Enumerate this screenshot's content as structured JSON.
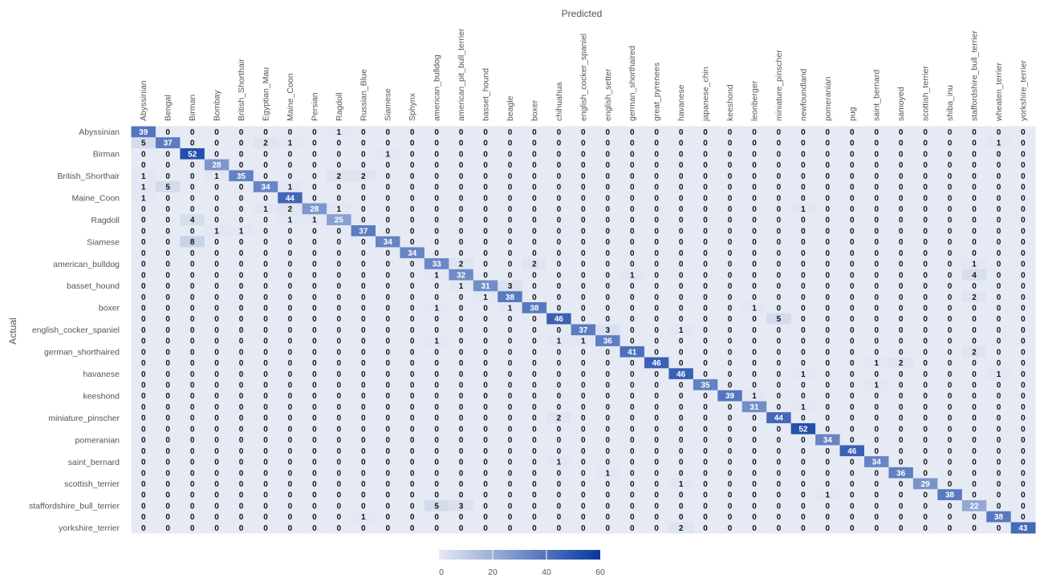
{
  "chart_data": {
    "type": "heatmap",
    "xlabel": "Predicted",
    "ylabel": "Actual",
    "x_categories": [
      "Abyssinian",
      "Bengal",
      "Birman",
      "Bombay",
      "British_Shorthair",
      "Egyptian_Mau",
      "Maine_Coon",
      "Persian",
      "Ragdoll",
      "Russian_Blue",
      "Siamese",
      "Sphynx",
      "american_bulldog",
      "american_pit_bull_terrier",
      "basset_hound",
      "beagle",
      "boxer",
      "chihuahua",
      "english_cocker_spaniel",
      "english_setter",
      "german_shorthaired",
      "great_pyrenees",
      "havanese",
      "japanese_chin",
      "keeshond",
      "leonberger",
      "miniature_pinscher",
      "newfoundland",
      "pomeranian",
      "pug",
      "saint_bernard",
      "samoyed",
      "scottish_terrier",
      "shiba_inu",
      "staffordshire_bull_terrier",
      "wheaten_terrier",
      "yorkshire_terrier"
    ],
    "y_categories": [
      "Abyssinian",
      "Bengal",
      "Birman",
      "Bombay",
      "British_Shorthair",
      "Egyptian_Mau",
      "Maine_Coon",
      "Persian",
      "Ragdoll",
      "Russian_Blue",
      "Siamese",
      "Sphynx",
      "american_bulldog",
      "american_pit_bull_terrier",
      "basset_hound",
      "beagle",
      "boxer",
      "chihuahua",
      "english_cocker_spaniel",
      "english_setter",
      "german_shorthaired",
      "great_pyrenees",
      "havanese",
      "japanese_chin",
      "keeshond",
      "leonberger",
      "miniature_pinscher",
      "newfoundland",
      "pomeranian",
      "pug",
      "saint_bernard",
      "samoyed",
      "scottish_terrier",
      "shiba_inu",
      "staffordshire_bull_terrier",
      "wheaten_terrier",
      "yorkshire_terrier"
    ],
    "y_tick_labels_shown": [
      "Abyssinian",
      "",
      "Birman",
      "",
      "British_Shorthair",
      "",
      "Maine_Coon",
      "",
      "Ragdoll",
      "",
      "Siamese",
      "",
      "american_bulldog",
      "",
      "basset_hound",
      "",
      "boxer",
      "",
      "english_cocker_spaniel",
      "",
      "german_shorthaired",
      "",
      "havanese",
      "",
      "keeshond",
      "",
      "miniature_pinscher",
      "",
      "pomeranian",
      "",
      "saint_bernard",
      "",
      "scottish_terrier",
      "",
      "staffordshire_bull_terrier",
      "",
      "yorkshire_terrier"
    ],
    "matrix": [
      [
        39,
        0,
        0,
        0,
        0,
        0,
        0,
        0,
        1,
        0,
        0,
        0,
        0,
        0,
        0,
        0,
        0,
        0,
        0,
        0,
        0,
        0,
        0,
        0,
        0,
        0,
        0,
        0,
        0,
        0,
        0,
        0,
        0,
        0,
        0,
        0,
        0
      ],
      [
        5,
        37,
        0,
        0,
        0,
        2,
        1,
        0,
        0,
        0,
        0,
        0,
        0,
        0,
        0,
        0,
        0,
        0,
        0,
        0,
        0,
        0,
        0,
        0,
        0,
        0,
        0,
        0,
        0,
        0,
        0,
        0,
        0,
        0,
        0,
        1,
        0
      ],
      [
        0,
        0,
        52,
        0,
        0,
        0,
        0,
        0,
        0,
        0,
        1,
        0,
        0,
        0,
        0,
        0,
        0,
        0,
        0,
        0,
        0,
        0,
        0,
        0,
        0,
        0,
        0,
        0,
        0,
        0,
        0,
        0,
        0,
        0,
        0,
        0,
        0
      ],
      [
        0,
        0,
        0,
        28,
        0,
        0,
        0,
        0,
        0,
        0,
        0,
        0,
        0,
        0,
        0,
        0,
        0,
        0,
        0,
        0,
        0,
        0,
        0,
        0,
        0,
        0,
        0,
        0,
        0,
        0,
        0,
        0,
        0,
        0,
        0,
        0,
        0
      ],
      [
        1,
        0,
        0,
        1,
        35,
        0,
        0,
        0,
        2,
        2,
        0,
        0,
        0,
        0,
        0,
        0,
        0,
        0,
        0,
        0,
        0,
        0,
        0,
        0,
        0,
        0,
        0,
        0,
        0,
        0,
        0,
        0,
        0,
        0,
        0,
        0,
        0
      ],
      [
        1,
        5,
        0,
        0,
        0,
        34,
        1,
        0,
        0,
        0,
        0,
        0,
        0,
        0,
        0,
        0,
        0,
        0,
        0,
        0,
        0,
        0,
        0,
        0,
        0,
        0,
        0,
        0,
        0,
        0,
        0,
        0,
        0,
        0,
        0,
        0,
        0
      ],
      [
        1,
        0,
        0,
        0,
        0,
        0,
        44,
        0,
        0,
        0,
        0,
        0,
        0,
        0,
        0,
        0,
        0,
        0,
        0,
        0,
        0,
        0,
        0,
        0,
        0,
        0,
        0,
        0,
        0,
        0,
        0,
        0,
        0,
        0,
        0,
        0,
        0
      ],
      [
        0,
        0,
        0,
        0,
        0,
        1,
        2,
        28,
        1,
        0,
        0,
        0,
        0,
        0,
        0,
        0,
        0,
        0,
        0,
        0,
        0,
        0,
        0,
        0,
        0,
        0,
        0,
        1,
        0,
        0,
        0,
        0,
        0,
        0,
        0,
        0,
        0
      ],
      [
        0,
        0,
        4,
        0,
        0,
        0,
        1,
        1,
        25,
        0,
        0,
        0,
        0,
        0,
        0,
        0,
        0,
        0,
        0,
        0,
        0,
        0,
        0,
        0,
        0,
        0,
        0,
        0,
        0,
        0,
        0,
        0,
        0,
        0,
        0,
        0,
        0
      ],
      [
        0,
        0,
        0,
        1,
        1,
        0,
        0,
        0,
        0,
        37,
        0,
        0,
        0,
        0,
        0,
        0,
        0,
        0,
        0,
        0,
        0,
        0,
        0,
        0,
        0,
        0,
        0,
        0,
        0,
        0,
        0,
        0,
        0,
        0,
        0,
        0,
        0
      ],
      [
        0,
        0,
        8,
        0,
        0,
        0,
        0,
        0,
        0,
        0,
        34,
        0,
        0,
        0,
        0,
        0,
        0,
        0,
        0,
        0,
        0,
        0,
        0,
        0,
        0,
        0,
        0,
        0,
        0,
        0,
        0,
        0,
        0,
        0,
        0,
        0,
        0
      ],
      [
        0,
        0,
        0,
        0,
        0,
        0,
        0,
        0,
        0,
        0,
        0,
        34,
        0,
        0,
        0,
        0,
        0,
        0,
        0,
        0,
        0,
        0,
        0,
        0,
        0,
        0,
        0,
        0,
        0,
        0,
        0,
        0,
        0,
        0,
        0,
        0,
        0
      ],
      [
        0,
        0,
        0,
        0,
        0,
        0,
        0,
        0,
        0,
        0,
        0,
        0,
        33,
        2,
        0,
        0,
        2,
        0,
        0,
        0,
        0,
        0,
        0,
        0,
        0,
        0,
        0,
        0,
        0,
        0,
        0,
        0,
        0,
        0,
        1,
        0,
        0
      ],
      [
        0,
        0,
        0,
        0,
        0,
        0,
        0,
        0,
        0,
        0,
        0,
        0,
        1,
        32,
        0,
        0,
        0,
        0,
        0,
        0,
        1,
        0,
        0,
        0,
        0,
        0,
        0,
        0,
        0,
        0,
        0,
        0,
        0,
        0,
        4,
        0,
        0
      ],
      [
        0,
        0,
        0,
        0,
        0,
        0,
        0,
        0,
        0,
        0,
        0,
        0,
        0,
        1,
        31,
        3,
        0,
        0,
        0,
        0,
        0,
        0,
        0,
        0,
        0,
        0,
        0,
        0,
        0,
        0,
        0,
        0,
        0,
        0,
        0,
        0,
        0
      ],
      [
        0,
        0,
        0,
        0,
        0,
        0,
        0,
        0,
        0,
        0,
        0,
        0,
        0,
        0,
        1,
        38,
        0,
        0,
        0,
        0,
        0,
        0,
        0,
        0,
        0,
        0,
        0,
        0,
        0,
        0,
        0,
        0,
        0,
        0,
        2,
        0,
        0
      ],
      [
        0,
        0,
        0,
        0,
        0,
        0,
        0,
        0,
        0,
        0,
        0,
        0,
        1,
        0,
        0,
        1,
        38,
        0,
        0,
        0,
        0,
        0,
        0,
        0,
        0,
        1,
        0,
        0,
        0,
        0,
        0,
        0,
        0,
        0,
        0,
        0,
        0
      ],
      [
        0,
        0,
        0,
        0,
        0,
        0,
        0,
        0,
        0,
        0,
        0,
        0,
        0,
        0,
        0,
        0,
        0,
        46,
        0,
        0,
        0,
        0,
        0,
        0,
        0,
        0,
        5,
        0,
        0,
        0,
        0,
        0,
        0,
        0,
        0,
        0,
        0
      ],
      [
        0,
        0,
        0,
        0,
        0,
        0,
        0,
        0,
        0,
        0,
        0,
        0,
        0,
        0,
        0,
        0,
        0,
        0,
        37,
        3,
        0,
        0,
        1,
        0,
        0,
        0,
        0,
        0,
        0,
        0,
        0,
        0,
        0,
        0,
        0,
        0,
        0
      ],
      [
        0,
        0,
        0,
        0,
        0,
        0,
        0,
        0,
        0,
        0,
        0,
        0,
        1,
        0,
        0,
        0,
        0,
        1,
        1,
        36,
        0,
        0,
        0,
        0,
        0,
        0,
        0,
        0,
        0,
        0,
        0,
        0,
        0,
        0,
        0,
        0,
        0
      ],
      [
        0,
        0,
        0,
        0,
        0,
        0,
        0,
        0,
        0,
        0,
        0,
        0,
        0,
        0,
        0,
        0,
        0,
        0,
        0,
        0,
        41,
        0,
        0,
        0,
        0,
        0,
        0,
        0,
        0,
        0,
        0,
        0,
        0,
        0,
        2,
        0,
        0
      ],
      [
        0,
        0,
        0,
        0,
        0,
        0,
        0,
        0,
        0,
        0,
        0,
        0,
        0,
        0,
        0,
        0,
        0,
        0,
        0,
        0,
        0,
        46,
        0,
        0,
        0,
        0,
        0,
        0,
        0,
        0,
        1,
        2,
        0,
        0,
        0,
        0,
        0
      ],
      [
        0,
        0,
        0,
        0,
        0,
        0,
        0,
        0,
        0,
        0,
        0,
        0,
        0,
        0,
        0,
        0,
        0,
        0,
        0,
        0,
        0,
        0,
        46,
        0,
        0,
        0,
        0,
        1,
        0,
        0,
        0,
        0,
        0,
        0,
        0,
        1,
        0
      ],
      [
        0,
        0,
        0,
        0,
        0,
        0,
        0,
        0,
        0,
        0,
        0,
        0,
        0,
        0,
        0,
        0,
        0,
        0,
        0,
        0,
        0,
        0,
        0,
        35,
        0,
        0,
        0,
        0,
        0,
        0,
        1,
        0,
        0,
        0,
        0,
        0,
        0
      ],
      [
        0,
        0,
        0,
        0,
        0,
        0,
        0,
        0,
        0,
        0,
        0,
        0,
        0,
        0,
        0,
        0,
        0,
        0,
        0,
        0,
        0,
        0,
        0,
        0,
        39,
        1,
        0,
        0,
        0,
        0,
        0,
        0,
        0,
        0,
        0,
        0,
        0
      ],
      [
        0,
        0,
        0,
        0,
        0,
        0,
        0,
        0,
        0,
        0,
        0,
        0,
        0,
        0,
        0,
        0,
        0,
        0,
        0,
        0,
        0,
        0,
        0,
        0,
        0,
        31,
        0,
        1,
        0,
        0,
        0,
        0,
        0,
        0,
        0,
        0,
        0
      ],
      [
        0,
        0,
        0,
        0,
        0,
        0,
        0,
        0,
        0,
        0,
        0,
        0,
        0,
        0,
        0,
        0,
        0,
        2,
        0,
        0,
        0,
        0,
        0,
        0,
        0,
        0,
        44,
        0,
        0,
        0,
        0,
        0,
        0,
        0,
        0,
        0,
        0
      ],
      [
        0,
        0,
        0,
        0,
        0,
        0,
        0,
        0,
        0,
        0,
        0,
        0,
        0,
        0,
        0,
        0,
        0,
        0,
        0,
        0,
        0,
        0,
        0,
        0,
        0,
        0,
        0,
        52,
        0,
        0,
        0,
        0,
        0,
        0,
        0,
        0,
        0
      ],
      [
        0,
        0,
        0,
        0,
        0,
        0,
        0,
        0,
        0,
        0,
        0,
        0,
        0,
        0,
        0,
        0,
        0,
        0,
        0,
        0,
        0,
        0,
        0,
        0,
        0,
        0,
        0,
        0,
        34,
        0,
        0,
        0,
        0,
        0,
        0,
        0,
        0
      ],
      [
        0,
        0,
        0,
        0,
        0,
        0,
        0,
        0,
        0,
        0,
        0,
        0,
        0,
        0,
        0,
        0,
        0,
        0,
        0,
        0,
        0,
        0,
        0,
        0,
        0,
        0,
        0,
        0,
        0,
        46,
        0,
        0,
        0,
        0,
        0,
        0,
        0
      ],
      [
        0,
        0,
        0,
        0,
        0,
        0,
        0,
        0,
        0,
        0,
        0,
        0,
        0,
        0,
        0,
        0,
        0,
        1,
        0,
        0,
        0,
        0,
        0,
        0,
        0,
        0,
        0,
        0,
        0,
        0,
        34,
        0,
        0,
        0,
        0,
        0,
        0
      ],
      [
        0,
        0,
        0,
        0,
        0,
        0,
        0,
        0,
        0,
        0,
        0,
        0,
        0,
        0,
        0,
        0,
        0,
        0,
        0,
        1,
        0,
        0,
        0,
        0,
        0,
        0,
        0,
        0,
        0,
        0,
        0,
        36,
        0,
        0,
        0,
        0,
        0
      ],
      [
        0,
        0,
        0,
        0,
        0,
        0,
        0,
        0,
        0,
        0,
        0,
        0,
        0,
        0,
        0,
        0,
        0,
        0,
        0,
        0,
        0,
        0,
        1,
        0,
        0,
        0,
        0,
        0,
        0,
        0,
        0,
        0,
        29,
        0,
        0,
        0,
        0
      ],
      [
        0,
        0,
        0,
        0,
        0,
        0,
        0,
        0,
        0,
        0,
        0,
        0,
        0,
        0,
        0,
        0,
        0,
        0,
        0,
        0,
        0,
        0,
        0,
        0,
        0,
        0,
        0,
        0,
        1,
        0,
        0,
        0,
        0,
        38,
        0,
        0,
        0
      ],
      [
        0,
        0,
        0,
        0,
        0,
        0,
        0,
        0,
        0,
        0,
        0,
        0,
        5,
        3,
        0,
        0,
        0,
        0,
        0,
        0,
        0,
        0,
        0,
        0,
        0,
        0,
        0,
        0,
        0,
        0,
        0,
        0,
        0,
        0,
        22,
        0,
        0
      ],
      [
        0,
        0,
        0,
        0,
        0,
        0,
        0,
        0,
        0,
        1,
        0,
        0,
        0,
        0,
        0,
        0,
        0,
        0,
        0,
        0,
        0,
        0,
        0,
        0,
        0,
        0,
        0,
        0,
        0,
        0,
        0,
        0,
        0,
        0,
        0,
        38,
        0
      ],
      [
        0,
        0,
        0,
        0,
        0,
        0,
        0,
        0,
        0,
        0,
        0,
        0,
        0,
        0,
        0,
        0,
        0,
        0,
        0,
        0,
        0,
        0,
        2,
        0,
        0,
        0,
        0,
        0,
        0,
        0,
        0,
        0,
        0,
        0,
        0,
        0,
        43
      ]
    ],
    "color_scale": {
      "min": 0,
      "max": 60,
      "low_color": "#e6eaf4",
      "high_color": "#0637a0"
    },
    "colorbar_ticks": [
      0,
      20,
      40,
      60
    ],
    "grid": false,
    "legend_placement": "bottom"
  }
}
